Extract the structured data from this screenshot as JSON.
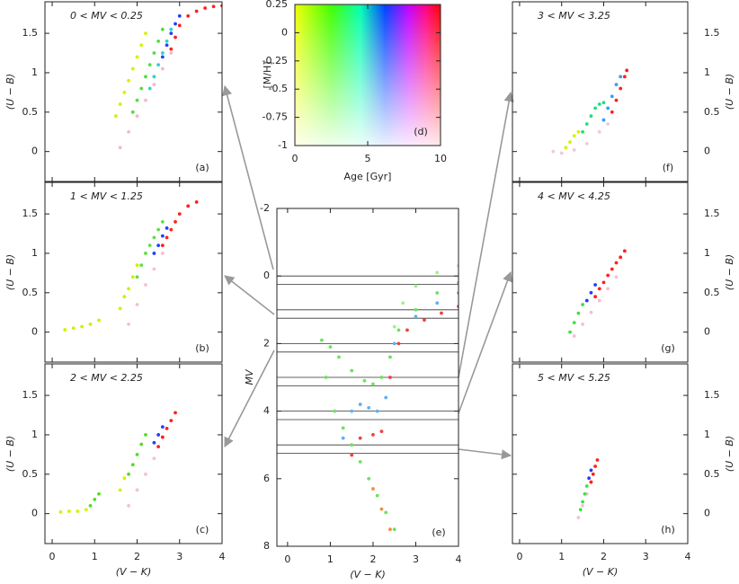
{
  "chart_data": [
    {
      "type": "scatter",
      "title": "0 < MV < 0.25",
      "panel_label": "(a)",
      "ylabel": "(U − B)",
      "xlim": [
        -0.17,
        4
      ],
      "ylim": [
        -0.38,
        1.9
      ],
      "xticks": [
        0,
        1,
        2,
        3,
        4
      ],
      "yticks": [
        0,
        0.5,
        1,
        1.5
      ],
      "show_xtick_labels": false,
      "ytick_side": "left",
      "series": [
        {
          "color": "#f4b8c8",
          "x": [
            1.6,
            1.8,
            2.0,
            2.2,
            2.4,
            2.6,
            2.8
          ],
          "y": [
            0.05,
            0.25,
            0.45,
            0.65,
            0.85,
            1.05,
            1.25
          ]
        },
        {
          "color": "#d8f000",
          "x": [
            1.5,
            1.6,
            1.7,
            1.8,
            1.9,
            2.0,
            2.1,
            2.2
          ],
          "y": [
            0.45,
            0.6,
            0.75,
            0.9,
            1.05,
            1.2,
            1.35,
            1.5
          ]
        },
        {
          "color": "#50e040",
          "x": [
            1.9,
            2.0,
            2.1,
            2.2,
            2.3,
            2.4,
            2.5,
            2.6
          ],
          "y": [
            0.5,
            0.65,
            0.8,
            0.95,
            1.1,
            1.25,
            1.4,
            1.55
          ]
        },
        {
          "color": "#30d0d0",
          "x": [
            2.3,
            2.4,
            2.5,
            2.6,
            2.7,
            2.8
          ],
          "y": [
            0.8,
            0.95,
            1.1,
            1.25,
            1.4,
            1.55
          ]
        },
        {
          "color": "#2040ff",
          "x": [
            2.6,
            2.7,
            2.8,
            2.9,
            3.0
          ],
          "y": [
            1.2,
            1.35,
            1.5,
            1.62,
            1.72
          ]
        },
        {
          "color": "#ff2020",
          "x": [
            2.8,
            2.9,
            3.0,
            3.2,
            3.4,
            3.6,
            3.8,
            4.0
          ],
          "y": [
            1.3,
            1.45,
            1.6,
            1.72,
            1.78,
            1.82,
            1.84,
            1.85
          ]
        }
      ]
    },
    {
      "type": "scatter",
      "title": "1 < MV < 1.25",
      "panel_label": "(b)",
      "ylabel": "(U − B)",
      "xlim": [
        -0.17,
        4
      ],
      "ylim": [
        -0.38,
        1.9
      ],
      "xticks": [
        0,
        1,
        2,
        3,
        4
      ],
      "yticks": [
        0,
        0.5,
        1,
        1.5
      ],
      "show_xtick_labels": false,
      "ytick_side": "left",
      "series": [
        {
          "color": "#f4c0d0",
          "x": [
            1.8,
            2.0,
            2.2,
            2.4,
            2.6
          ],
          "y": [
            0.1,
            0.35,
            0.6,
            0.8,
            1.0
          ]
        },
        {
          "color": "#d0f000",
          "x": [
            0.3,
            0.5,
            0.7,
            0.9,
            1.1,
            1.6,
            1.7,
            1.8,
            1.9,
            2.0
          ],
          "y": [
            0.03,
            0.05,
            0.07,
            0.1,
            0.15,
            0.3,
            0.45,
            0.55,
            0.7,
            0.85
          ]
        },
        {
          "color": "#60e040",
          "x": [
            2.0,
            2.1,
            2.2,
            2.3,
            2.4,
            2.5,
            2.6
          ],
          "y": [
            0.7,
            0.85,
            1.0,
            1.1,
            1.2,
            1.3,
            1.4
          ]
        },
        {
          "color": "#2040ff",
          "x": [
            2.4,
            2.5,
            2.6,
            2.7
          ],
          "y": [
            1.0,
            1.1,
            1.22,
            1.32
          ]
        },
        {
          "color": "#ff2020",
          "x": [
            2.6,
            2.7,
            2.8,
            2.9,
            3.0,
            3.2,
            3.4
          ],
          "y": [
            1.1,
            1.2,
            1.3,
            1.4,
            1.5,
            1.6,
            1.65
          ]
        }
      ]
    },
    {
      "type": "scatter",
      "title": "2 < MV < 2.25",
      "panel_label": "(c)",
      "ylabel": "(U − B)",
      "xlabel": "(V − K)",
      "xlim": [
        -0.17,
        4
      ],
      "ylim": [
        -0.38,
        1.9
      ],
      "xticks": [
        0,
        1,
        2,
        3,
        4
      ],
      "yticks": [
        0,
        0.5,
        1,
        1.5
      ],
      "show_xtick_labels": true,
      "ytick_side": "left",
      "series": [
        {
          "color": "#f4c0d0",
          "x": [
            1.8,
            2.0,
            2.2,
            2.4
          ],
          "y": [
            0.1,
            0.3,
            0.5,
            0.7
          ]
        },
        {
          "color": "#d8f000",
          "x": [
            0.2,
            0.4,
            0.6,
            0.8,
            1.6,
            1.7
          ],
          "y": [
            0.02,
            0.03,
            0.03,
            0.05,
            0.3,
            0.45
          ]
        },
        {
          "color": "#50e020",
          "x": [
            0.9,
            1.0,
            1.1,
            1.8,
            1.9,
            2.0,
            2.1,
            2.2
          ],
          "y": [
            0.1,
            0.18,
            0.25,
            0.5,
            0.62,
            0.75,
            0.88,
            1.0
          ]
        },
        {
          "color": "#2040ff",
          "x": [
            2.4,
            2.5,
            2.6
          ],
          "y": [
            0.9,
            1.0,
            1.1
          ]
        },
        {
          "color": "#ff2020",
          "x": [
            2.5,
            2.6,
            2.7,
            2.8,
            2.9
          ],
          "y": [
            0.85,
            0.97,
            1.08,
            1.18,
            1.28
          ]
        }
      ]
    },
    {
      "type": "scatter",
      "title": "3 < MV < 3.25",
      "panel_label": "(f)",
      "ylabel": "(U − B)",
      "xlim": [
        -0.17,
        4
      ],
      "ylim": [
        -0.38,
        1.9
      ],
      "xticks": [
        0,
        1,
        2,
        3,
        4
      ],
      "yticks": [
        0,
        0.5,
        1,
        1.5
      ],
      "show_xtick_labels": false,
      "ytick_side": "right",
      "series": [
        {
          "color": "#f0c8e0",
          "x": [
            0.8,
            1.0,
            1.3,
            1.6,
            1.9,
            2.1
          ],
          "y": [
            0.0,
            -0.02,
            0.02,
            0.1,
            0.25,
            0.35
          ]
        },
        {
          "color": "#d8f000",
          "x": [
            1.1,
            1.2,
            1.3,
            1.4
          ],
          "y": [
            0.05,
            0.12,
            0.2,
            0.25
          ]
        },
        {
          "color": "#20e080",
          "x": [
            1.5,
            1.6,
            1.7,
            1.8,
            1.9,
            2.0
          ],
          "y": [
            0.25,
            0.35,
            0.45,
            0.55,
            0.6,
            0.62
          ]
        },
        {
          "color": "#30a0ff",
          "x": [
            2.0,
            2.1,
            2.2,
            2.3,
            2.4
          ],
          "y": [
            0.4,
            0.55,
            0.7,
            0.85,
            0.95
          ]
        },
        {
          "color": "#ff2020",
          "x": [
            2.2,
            2.3,
            2.4,
            2.5,
            2.55
          ],
          "y": [
            0.5,
            0.65,
            0.8,
            0.95,
            1.03
          ]
        }
      ]
    },
    {
      "type": "scatter",
      "title": "4 < MV < 4.25",
      "panel_label": "(g)",
      "ylabel": "(U − B)",
      "xlim": [
        -0.17,
        4
      ],
      "ylim": [
        -0.38,
        1.9
      ],
      "xticks": [
        0,
        1,
        2,
        3,
        4
      ],
      "yticks": [
        0,
        0.5,
        1,
        1.5
      ],
      "show_xtick_labels": false,
      "ytick_side": "right",
      "series": [
        {
          "color": "#f4c0d0",
          "x": [
            1.3,
            1.5,
            1.7,
            1.9,
            2.1,
            2.3
          ],
          "y": [
            -0.05,
            0.1,
            0.25,
            0.4,
            0.55,
            0.7
          ]
        },
        {
          "color": "#40e040",
          "x": [
            1.2,
            1.3,
            1.4,
            1.5
          ],
          "y": [
            0.0,
            0.12,
            0.24,
            0.35
          ]
        },
        {
          "color": "#2040ff",
          "x": [
            1.6,
            1.7,
            1.8
          ],
          "y": [
            0.4,
            0.5,
            0.6
          ]
        },
        {
          "color": "#ff2020",
          "x": [
            1.8,
            1.9,
            2.0,
            2.1,
            2.2,
            2.3,
            2.4,
            2.5
          ],
          "y": [
            0.45,
            0.55,
            0.63,
            0.72,
            0.8,
            0.88,
            0.95,
            1.03
          ]
        }
      ]
    },
    {
      "type": "scatter",
      "title": "5 < MV < 5.25",
      "panel_label": "(h)",
      "ylabel": "(U − B)",
      "xlabel": "(V − K)",
      "xlim": [
        -0.17,
        4
      ],
      "ylim": [
        -0.38,
        1.9
      ],
      "xticks": [
        0,
        1,
        2,
        3,
        4
      ],
      "yticks": [
        0,
        0.5,
        1,
        1.5
      ],
      "show_xtick_labels": true,
      "ytick_side": "right",
      "series": [
        {
          "color": "#f4c0d0",
          "x": [
            1.4,
            1.5,
            1.6,
            1.7
          ],
          "y": [
            -0.05,
            0.1,
            0.25,
            0.4
          ]
        },
        {
          "color": "#40e040",
          "x": [
            1.45,
            1.5,
            1.55,
            1.6
          ],
          "y": [
            0.05,
            0.15,
            0.25,
            0.35
          ]
        },
        {
          "color": "#2040ff",
          "x": [
            1.65,
            1.7
          ],
          "y": [
            0.45,
            0.55
          ]
        },
        {
          "color": "#ff2020",
          "x": [
            1.7,
            1.75,
            1.8,
            1.85
          ],
          "y": [
            0.4,
            0.5,
            0.6,
            0.68
          ]
        }
      ]
    },
    {
      "type": "colormap",
      "panel_label": "(d)",
      "xlabel": "Age [Gyr]",
      "ylabel": "[M/H]",
      "xlim": [
        0,
        10
      ],
      "ylim": [
        -1,
        0.25
      ],
      "xticks": [
        0,
        5,
        10
      ],
      "yticks": [
        0.25,
        0,
        -0.25,
        -0.5,
        -0.75,
        -1
      ],
      "show_xtick_labels": true,
      "ytick_side": "left"
    },
    {
      "type": "cmd",
      "panel_label": "(e)",
      "xlabel": "(V − K)",
      "ylabel": "MV",
      "xlim": [
        -0.25,
        4
      ],
      "ylim": [
        8,
        -2
      ],
      "xticks": [
        0,
        1,
        2,
        3,
        4
      ],
      "yticks": [
        -2,
        0,
        2,
        4,
        6,
        8
      ],
      "show_xtick_labels": true,
      "ytick_side": "left",
      "mv_lines": [
        0,
        0.25,
        1,
        1.25,
        2,
        2.25,
        3,
        3.25,
        4,
        4.25,
        5,
        5.25
      ],
      "series": [
        {
          "color": "#70e060",
          "x": [
            2.5,
            2.3,
            2.1,
            1.9,
            1.7,
            1.5,
            1.3,
            1.1,
            0.9,
            0.8,
            1.0,
            1.2,
            1.5,
            1.8,
            2.0,
            2.2,
            2.4,
            2.6,
            3.0,
            3.5,
            4.0
          ],
          "y": [
            7.5,
            7.0,
            6.5,
            6.0,
            5.5,
            5.0,
            4.5,
            4.0,
            3.0,
            1.9,
            2.1,
            2.4,
            2.8,
            3.1,
            3.2,
            3.0,
            2.4,
            1.6,
            1.0,
            0.5,
            0.2
          ]
        },
        {
          "color": "#a0f090",
          "x": [
            2.5,
            2.7,
            3.0,
            3.5,
            4.0
          ],
          "y": [
            1.5,
            0.8,
            0.3,
            -0.1,
            -0.3
          ]
        },
        {
          "color": "#60b0f0",
          "x": [
            1.3,
            1.5,
            1.7,
            1.9,
            2.1,
            2.3,
            2.5,
            3.0,
            3.5,
            4.0
          ],
          "y": [
            4.8,
            4.0,
            3.8,
            3.9,
            4.0,
            3.6,
            2.0,
            1.2,
            0.8,
            0.5
          ]
        },
        {
          "color": "#f04040",
          "x": [
            1.5,
            1.7,
            2.0,
            2.2,
            2.4,
            2.6,
            2.8,
            3.2,
            3.6,
            4.0
          ],
          "y": [
            5.3,
            4.8,
            4.7,
            4.6,
            3.0,
            2.0,
            1.6,
            1.3,
            1.1,
            0.9
          ]
        },
        {
          "color": "#f09040",
          "x": [
            2.0,
            2.2,
            2.4
          ],
          "y": [
            6.3,
            6.9,
            7.5
          ]
        }
      ]
    }
  ]
}
